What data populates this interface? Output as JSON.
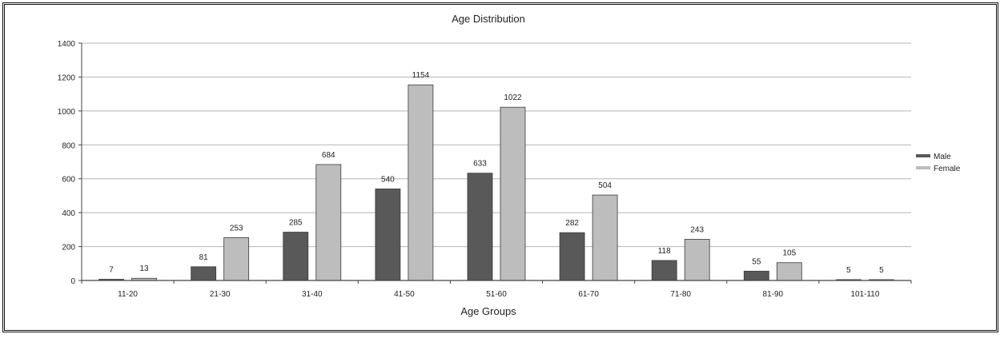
{
  "chart_data": {
    "type": "bar",
    "title": "Age Distribution",
    "xlabel": "Age Groups",
    "ylabel": "",
    "ylim": [
      0,
      1400
    ],
    "yticks": [
      0,
      200,
      400,
      600,
      800,
      1000,
      1200,
      1400
    ],
    "grid": true,
    "legend_position": "right",
    "categories": [
      "11-20",
      "21-30",
      "31-40",
      "41-50",
      "51-60",
      "61-70",
      "71-80",
      "81-90",
      "101-110"
    ],
    "series": [
      {
        "name": "Male",
        "color": "#595959",
        "values": [
          7,
          81,
          285,
          540,
          633,
          282,
          118,
          55,
          5
        ],
        "labels": [
          "7",
          "81",
          "285",
          "540",
          "633",
          "282",
          "118",
          "55",
          "5"
        ]
      },
      {
        "name": "Female",
        "color": "#bdbdbd",
        "values": [
          13,
          253,
          684,
          1154,
          1022,
          504,
          243,
          105,
          5
        ],
        "labels": [
          "13",
          "253",
          "684",
          "1154",
          "1022",
          "504",
          "243",
          "105",
          "5"
        ]
      }
    ]
  }
}
